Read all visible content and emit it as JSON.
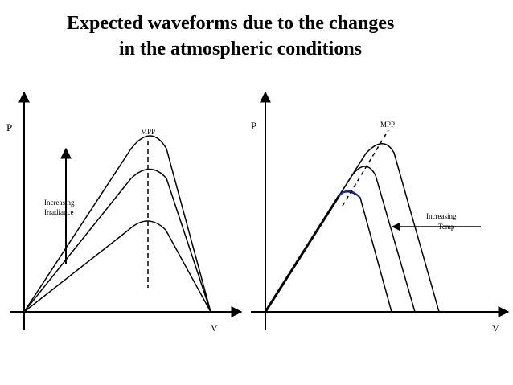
{
  "title": {
    "line1": "Expected waveforms due to the changes",
    "line2": "in the atmospheric conditions"
  },
  "left_plot": {
    "y_axis_label": "P",
    "x_axis_label": "V",
    "mpp_label": "MPP",
    "annotation_line1": "Increasing",
    "annotation_line2": "Irradiance"
  },
  "right_plot": {
    "y_axis_label": "P",
    "x_axis_label": "V",
    "mpp_label": "MPP",
    "annotation_line1": "Increasing",
    "annotation_line2": "Temp"
  },
  "colors": {
    "curve": "#000000",
    "highlight_arc": "#1f2aa8"
  }
}
